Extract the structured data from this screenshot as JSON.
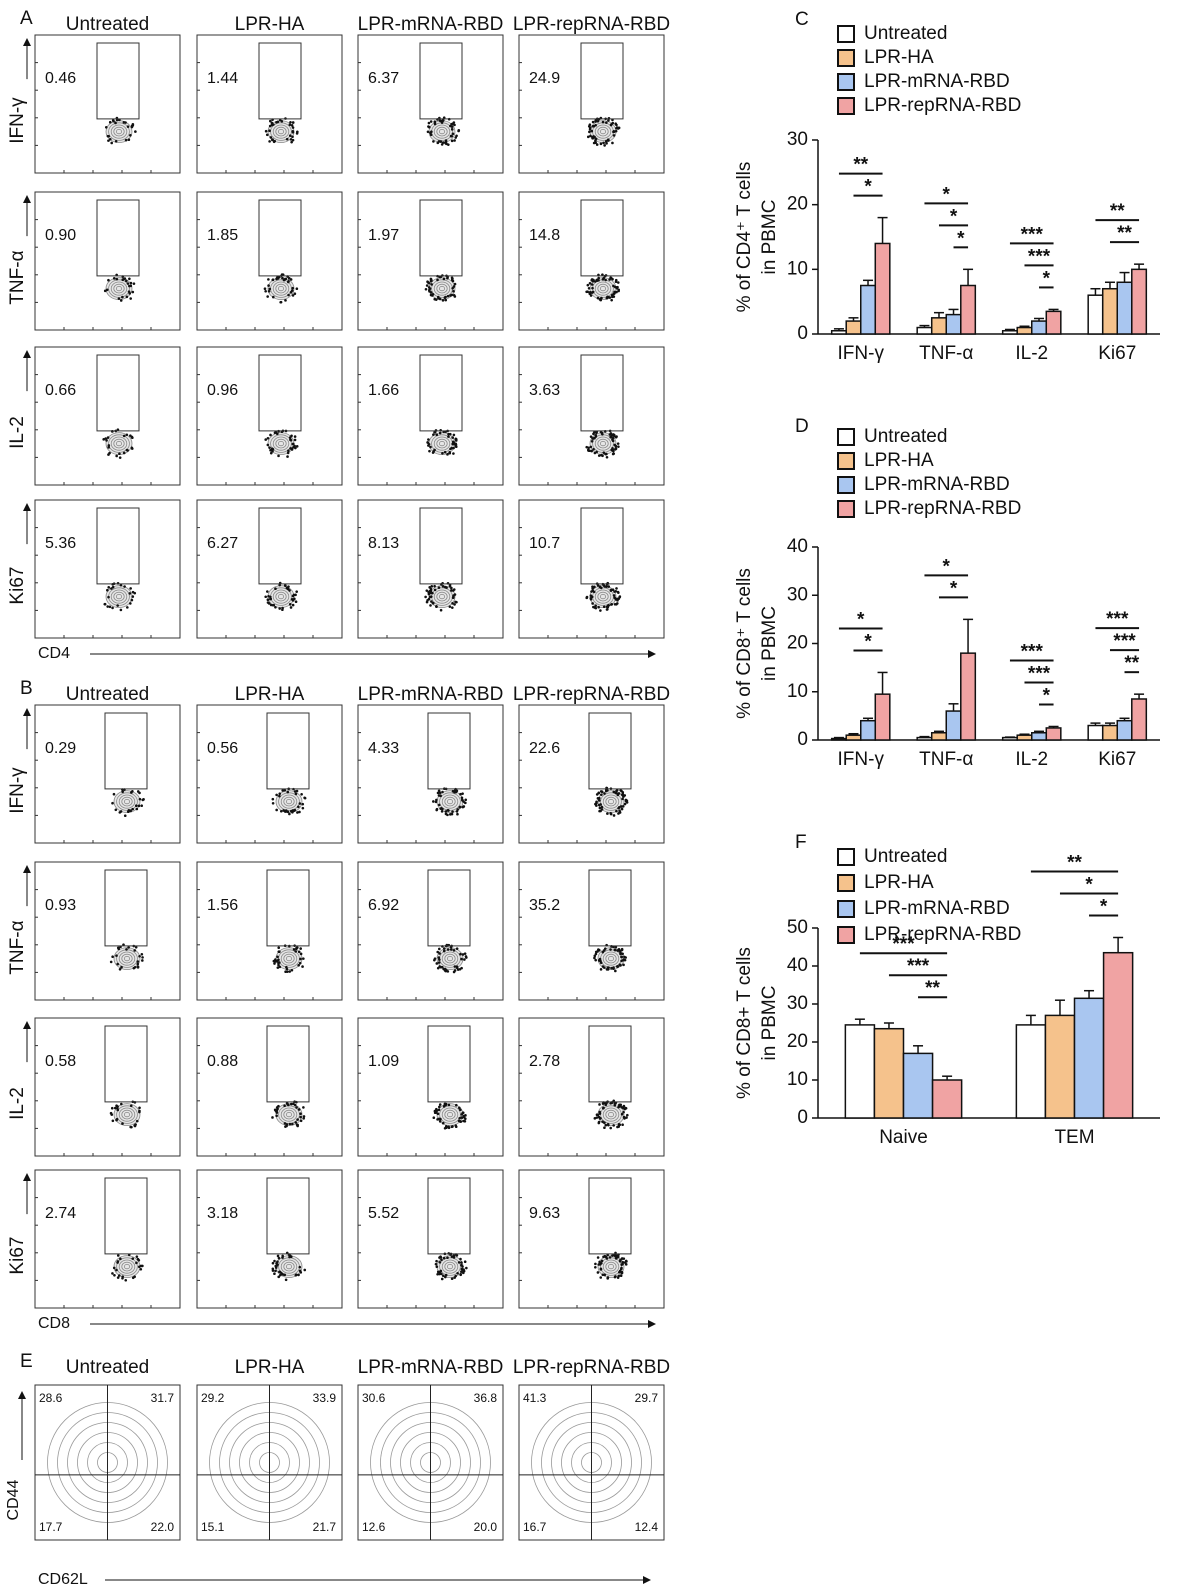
{
  "flow": [
    {
      "panel": "A",
      "columns": [
        "Untreated",
        "LPR-HA",
        "LPR-mRNA-RBD",
        "LPR-repRNA-RBD"
      ],
      "x_axis": "CD4",
      "rows": [
        {
          "marker": "IFN-γ",
          "values": [
            "0.46",
            "1.44",
            "6.37",
            "24.9"
          ]
        },
        {
          "marker": "TNF-α",
          "values": [
            "0.90",
            "1.85",
            "1.97",
            "14.8"
          ]
        },
        {
          "marker": "IL-2",
          "values": [
            "0.66",
            "0.96",
            "1.66",
            "3.63"
          ]
        },
        {
          "marker": "Ki67",
          "values": [
            "5.36",
            "6.27",
            "8.13",
            "10.7"
          ]
        }
      ]
    },
    {
      "panel": "B",
      "columns": [
        "Untreated",
        "LPR-HA",
        "LPR-mRNA-RBD",
        "LPR-repRNA-RBD"
      ],
      "x_axis": "CD8",
      "rows": [
        {
          "marker": "IFN-γ",
          "values": [
            "0.29",
            "0.56",
            "4.33",
            "22.6"
          ]
        },
        {
          "marker": "TNF-α",
          "values": [
            "0.93",
            "1.56",
            "6.92",
            "35.2"
          ]
        },
        {
          "marker": "IL-2",
          "values": [
            "0.58",
            "0.88",
            "1.09",
            "2.78"
          ]
        },
        {
          "marker": "Ki67",
          "values": [
            "2.74",
            "3.18",
            "5.52",
            "9.63"
          ]
        }
      ]
    }
  ],
  "quadrants": {
    "panel": "E",
    "columns": [
      "Untreated",
      "LPR-HA",
      "LPR-mRNA-RBD",
      "LPR-repRNA-RBD"
    ],
    "y_axis": "CD44",
    "x_axis": "CD62L",
    "values": [
      [
        "28.6",
        "31.7",
        "17.7",
        "22.0"
      ],
      [
        "29.2",
        "33.9",
        "15.1",
        "21.7"
      ],
      [
        "30.6",
        "36.8",
        "12.6",
        "20.0"
      ],
      [
        "41.3",
        "29.7",
        "16.7",
        "12.4"
      ]
    ]
  },
  "chart_data": [
    {
      "type": "bar",
      "panel": "C",
      "ylabel": [
        "% of CD4⁺ T cells",
        "in PBMC"
      ],
      "categories": [
        "IFN-γ",
        "TNF-α",
        "IL-2",
        "Ki67"
      ],
      "ylim": [
        0,
        30
      ],
      "yticks": [
        0,
        10,
        20,
        30
      ],
      "series": [
        {
          "name": "Untreated",
          "color": "#ffffff",
          "values": [
            0.5,
            1,
            0.5,
            6
          ],
          "errors": [
            0.3,
            0.3,
            0.2,
            1
          ]
        },
        {
          "name": "LPR-HA",
          "color": "#f5c28c",
          "values": [
            2,
            2.5,
            1,
            7
          ],
          "errors": [
            0.5,
            0.8,
            0.2,
            1
          ]
        },
        {
          "name": "LPR-mRNA-RBD",
          "color": "#a9c6f0",
          "values": [
            7.5,
            3,
            2,
            8
          ],
          "errors": [
            0.8,
            0.8,
            0.4,
            1.5
          ]
        },
        {
          "name": "LPR-repRNA-RBD",
          "color": "#f0a3a3",
          "values": [
            14,
            7.5,
            3.5,
            10
          ],
          "errors": [
            4,
            2.5,
            0.3,
            0.8
          ]
        }
      ],
      "comparisons": [
        {
          "category": "IFN-γ",
          "between": [
            "Untreated",
            "LPR-repRNA-RBD"
          ],
          "label": "**"
        },
        {
          "category": "IFN-γ",
          "between": [
            "LPR-HA",
            "LPR-repRNA-RBD"
          ],
          "label": "*"
        },
        {
          "category": "TNF-α",
          "between": [
            "Untreated",
            "LPR-repRNA-RBD"
          ],
          "label": "*"
        },
        {
          "category": "TNF-α",
          "between": [
            "LPR-HA",
            "LPR-repRNA-RBD"
          ],
          "label": "*"
        },
        {
          "category": "TNF-α",
          "between": [
            "LPR-mRNA-RBD",
            "LPR-repRNA-RBD"
          ],
          "label": "*"
        },
        {
          "category": "IL-2",
          "between": [
            "Untreated",
            "LPR-repRNA-RBD"
          ],
          "label": "***"
        },
        {
          "category": "IL-2",
          "between": [
            "LPR-HA",
            "LPR-repRNA-RBD"
          ],
          "label": "***"
        },
        {
          "category": "IL-2",
          "between": [
            "LPR-mRNA-RBD",
            "LPR-repRNA-RBD"
          ],
          "label": "*"
        },
        {
          "category": "Ki67",
          "between": [
            "Untreated",
            "LPR-repRNA-RBD"
          ],
          "label": "**"
        },
        {
          "category": "Ki67",
          "between": [
            "LPR-HA",
            "LPR-repRNA-RBD"
          ],
          "label": "**"
        }
      ]
    },
    {
      "type": "bar",
      "panel": "D",
      "ylabel": [
        "% of CD8⁺ T cells",
        "in PBMC"
      ],
      "categories": [
        "IFN-γ",
        "TNF-α",
        "IL-2",
        "Ki67"
      ],
      "ylim": [
        0,
        40
      ],
      "yticks": [
        0,
        10,
        20,
        30,
        40
      ],
      "series": [
        {
          "name": "Untreated",
          "color": "#ffffff",
          "values": [
            0.3,
            0.5,
            0.5,
            3
          ],
          "errors": [
            0.2,
            0.2,
            0.1,
            0.5
          ]
        },
        {
          "name": "LPR-HA",
          "color": "#f5c28c",
          "values": [
            1,
            1.5,
            1,
            3
          ],
          "errors": [
            0.3,
            0.3,
            0.2,
            0.5
          ]
        },
        {
          "name": "LPR-mRNA-RBD",
          "color": "#a9c6f0",
          "values": [
            4,
            6,
            1.5,
            4
          ],
          "errors": [
            0.5,
            1.5,
            0.3,
            0.5
          ]
        },
        {
          "name": "LPR-repRNA-RBD",
          "color": "#f0a3a3",
          "values": [
            9.5,
            18,
            2.5,
            8.5
          ],
          "errors": [
            4.5,
            7,
            0.3,
            1
          ]
        }
      ],
      "comparisons": [
        {
          "category": "IFN-γ",
          "between": [
            "Untreated",
            "LPR-repRNA-RBD"
          ],
          "label": "*"
        },
        {
          "category": "IFN-γ",
          "between": [
            "LPR-HA",
            "LPR-repRNA-RBD"
          ],
          "label": "*"
        },
        {
          "category": "TNF-α",
          "between": [
            "Untreated",
            "LPR-repRNA-RBD"
          ],
          "label": "*"
        },
        {
          "category": "TNF-α",
          "between": [
            "LPR-HA",
            "LPR-repRNA-RBD"
          ],
          "label": "*"
        },
        {
          "category": "IL-2",
          "between": [
            "Untreated",
            "LPR-repRNA-RBD"
          ],
          "label": "***"
        },
        {
          "category": "IL-2",
          "between": [
            "LPR-HA",
            "LPR-repRNA-RBD"
          ],
          "label": "***"
        },
        {
          "category": "IL-2",
          "between": [
            "LPR-mRNA-RBD",
            "LPR-repRNA-RBD"
          ],
          "label": "*"
        },
        {
          "category": "Ki67",
          "between": [
            "Untreated",
            "LPR-repRNA-RBD"
          ],
          "label": "***"
        },
        {
          "category": "Ki67",
          "between": [
            "LPR-HA",
            "LPR-repRNA-RBD"
          ],
          "label": "***"
        },
        {
          "category": "Ki67",
          "between": [
            "LPR-mRNA-RBD",
            "LPR-repRNA-RBD"
          ],
          "label": "**"
        }
      ]
    },
    {
      "type": "bar",
      "panel": "F",
      "ylabel": [
        "% of CD8+ T cells",
        "in PBMC"
      ],
      "categories": [
        "Naive",
        "TEM"
      ],
      "ylim": [
        0,
        50
      ],
      "yticks": [
        0,
        10,
        20,
        30,
        40,
        50
      ],
      "series": [
        {
          "name": "Untreated",
          "color": "#ffffff",
          "values": [
            24.5,
            24.5
          ],
          "errors": [
            1.5,
            2.5
          ]
        },
        {
          "name": "LPR-HA",
          "color": "#f5c28c",
          "values": [
            23.5,
            27
          ],
          "errors": [
            1.5,
            4
          ]
        },
        {
          "name": "LPR-mRNA-RBD",
          "color": "#a9c6f0",
          "values": [
            17,
            31.5
          ],
          "errors": [
            2,
            2
          ]
        },
        {
          "name": "LPR-repRNA-RBD",
          "color": "#f0a3a3",
          "values": [
            10,
            43.5
          ],
          "errors": [
            1,
            4
          ]
        }
      ],
      "comparisons": [
        {
          "category": "Naive",
          "between": [
            "Untreated",
            "LPR-repRNA-RBD"
          ],
          "label": "***"
        },
        {
          "category": "Naive",
          "between": [
            "LPR-HA",
            "LPR-repRNA-RBD"
          ],
          "label": "***"
        },
        {
          "category": "Naive",
          "between": [
            "LPR-mRNA-RBD",
            "LPR-repRNA-RBD"
          ],
          "label": "**"
        },
        {
          "category": "TEM",
          "between": [
            "Untreated",
            "LPR-repRNA-RBD"
          ],
          "label": "**"
        },
        {
          "category": "TEM",
          "between": [
            "LPR-HA",
            "LPR-repRNA-RBD"
          ],
          "label": "*"
        },
        {
          "category": "TEM",
          "between": [
            "LPR-mRNA-RBD",
            "LPR-repRNA-RBD"
          ],
          "label": "*"
        }
      ]
    }
  ]
}
